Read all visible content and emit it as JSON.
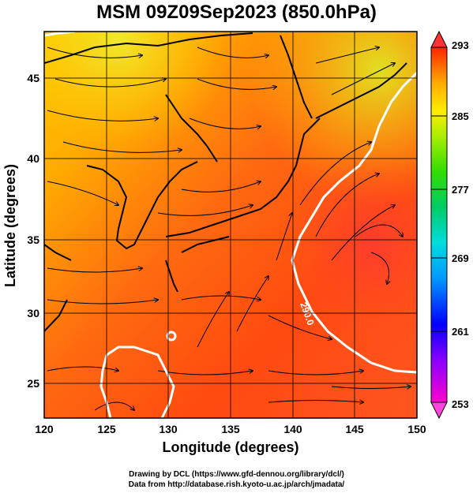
{
  "title": "MSM 09Z09Sep2023 (850.0hPa)",
  "axes": {
    "xlabel": "Longitude (degrees)",
    "ylabel": "Latitude  (degrees)",
    "xticks": [
      "120",
      "125",
      "130",
      "135",
      "140",
      "145",
      "150"
    ],
    "yticks": [
      "25",
      "30",
      "35",
      "40",
      "45"
    ],
    "xlim": [
      120,
      150
    ],
    "ylim": [
      22.5,
      47.5
    ]
  },
  "colorbar": {
    "ticks": [
      "293",
      "285",
      "277",
      "269",
      "261",
      "253"
    ],
    "range": [
      253,
      293
    ],
    "colors": [
      "#ff00cc",
      "#8800ff",
      "#0000ff",
      "#0099ff",
      "#00dddd",
      "#00cc66",
      "#33dd00",
      "#aaee00",
      "#ffee00",
      "#ffaa00",
      "#ff6600",
      "#ff2200"
    ]
  },
  "contour_label": "290.0",
  "credits": {
    "line1": "Drawing by DCL (https://www.gfd-dennou.org/library/dcl/)",
    "line2": "Data from http://database.rish.kyoto-u.ac.jp/arch/jmadata/"
  }
}
